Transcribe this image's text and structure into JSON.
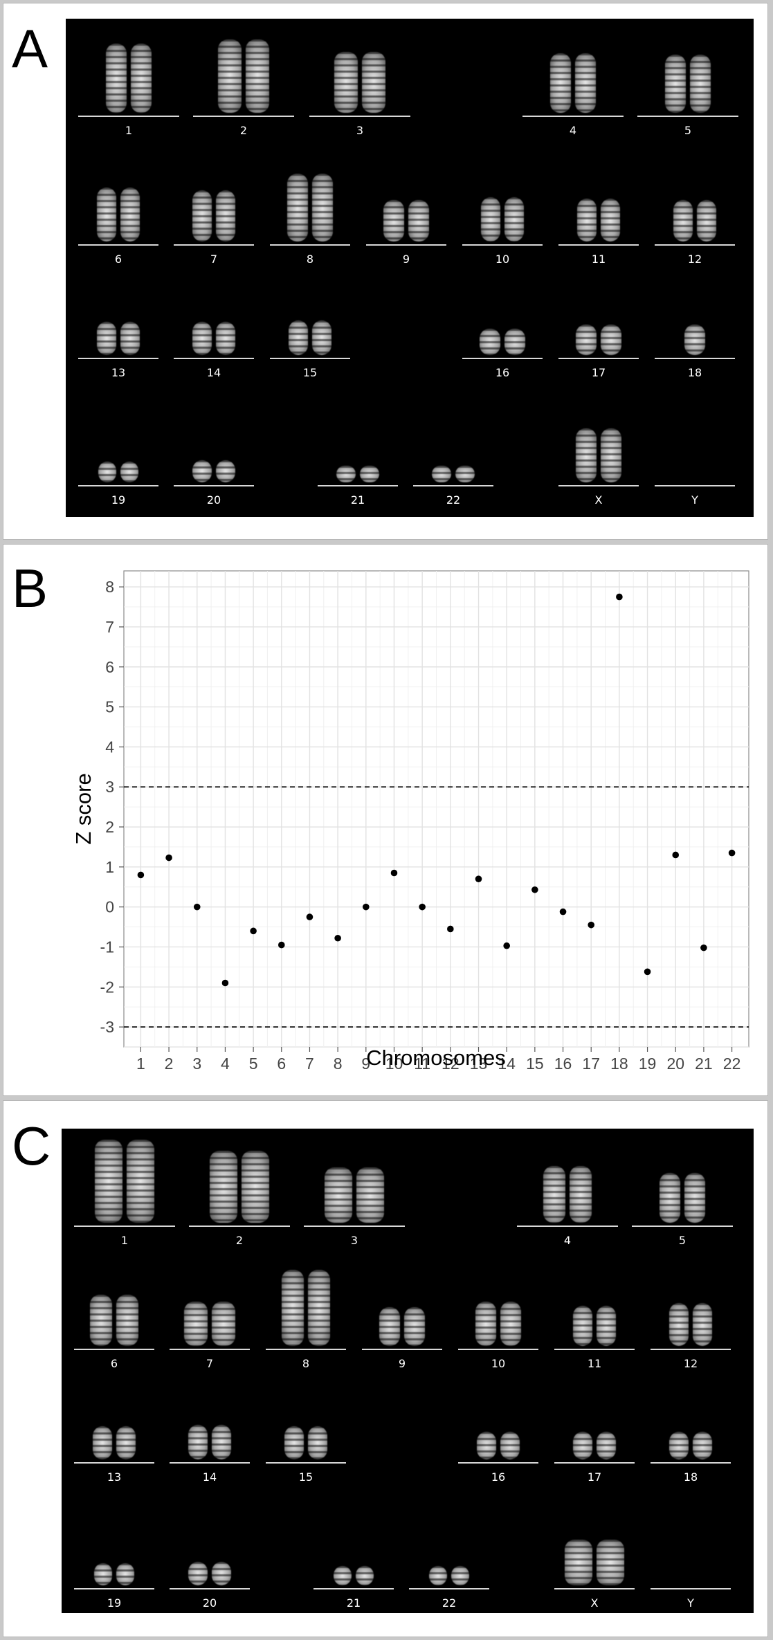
{
  "panels": {
    "a": {
      "letter": "A"
    },
    "b": {
      "letter": "B"
    },
    "c": {
      "letter": "C"
    }
  },
  "karyotype_a": {
    "labels": [
      "1",
      "2",
      "3",
      "4",
      "5",
      "6",
      "7",
      "8",
      "9",
      "10",
      "11",
      "12",
      "13",
      "14",
      "15",
      "16",
      "17",
      "18",
      "19",
      "20",
      "21",
      "22",
      "X",
      "Y"
    ]
  },
  "karyotype_c": {
    "labels": [
      "1",
      "2",
      "3",
      "4",
      "5",
      "6",
      "7",
      "8",
      "9",
      "10",
      "11",
      "12",
      "13",
      "14",
      "15",
      "16",
      "17",
      "18",
      "19",
      "20",
      "21",
      "22",
      "X",
      "Y"
    ]
  },
  "chart_data": {
    "type": "scatter",
    "xlabel": "Chromosomes",
    "ylabel": "Z score",
    "x": [
      1,
      2,
      3,
      4,
      5,
      6,
      7,
      8,
      9,
      10,
      11,
      12,
      13,
      14,
      15,
      16,
      17,
      18,
      19,
      20,
      21,
      22
    ],
    "y": [
      0.8,
      1.23,
      0.0,
      -1.9,
      -0.6,
      -0.95,
      -0.25,
      -0.78,
      0.0,
      0.85,
      0.0,
      -0.55,
      0.7,
      -0.97,
      0.43,
      -0.12,
      -0.45,
      7.75,
      -1.62,
      1.3,
      -1.02,
      1.35
    ],
    "xticks": [
      "1",
      "2",
      "3",
      "4",
      "5",
      "6",
      "7",
      "8",
      "9",
      "10",
      "11",
      "12",
      "13",
      "14",
      "15",
      "16",
      "17",
      "18",
      "19",
      "20",
      "21",
      "22"
    ],
    "yticks": [
      "-3",
      "-2",
      "-1",
      "0",
      "1",
      "2",
      "3",
      "4",
      "5",
      "6",
      "7",
      "8"
    ],
    "ylim": [
      -3.5,
      8.4
    ],
    "xlim": [
      0.4,
      22.6
    ],
    "thresholds": [
      3,
      -3
    ],
    "grid": true
  }
}
